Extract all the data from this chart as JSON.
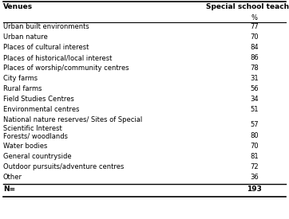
{
  "col1_header": "Venues",
  "col2_header": "Special school teachers",
  "col2_subheader": "%",
  "rows": [
    [
      "Urban built environments",
      "77"
    ],
    [
      "Urban nature",
      "70"
    ],
    [
      "Places of cultural interest",
      "84"
    ],
    [
      "Places of historical/local interest",
      "86"
    ],
    [
      "Places of worship/community centres",
      "78"
    ],
    [
      "City farms",
      "31"
    ],
    [
      "Rural farms",
      "56"
    ],
    [
      "Field Studies Centres",
      "34"
    ],
    [
      "Environmental centres",
      "51"
    ],
    [
      "National nature reserves/ Sites of Special\nScientific Interest",
      "57"
    ],
    [
      "Forests/ woodlands",
      "80"
    ],
    [
      "Water bodies",
      "70"
    ],
    [
      "General countryside",
      "81"
    ],
    [
      "Outdoor pursuits/adventure centres",
      "72"
    ],
    [
      "Other",
      "36"
    ]
  ],
  "footer_label": "N=",
  "footer_value": "193",
  "bg_color": "#ffffff",
  "header_font_size": 6.5,
  "body_font_size": 6.0,
  "col_split": 0.76
}
